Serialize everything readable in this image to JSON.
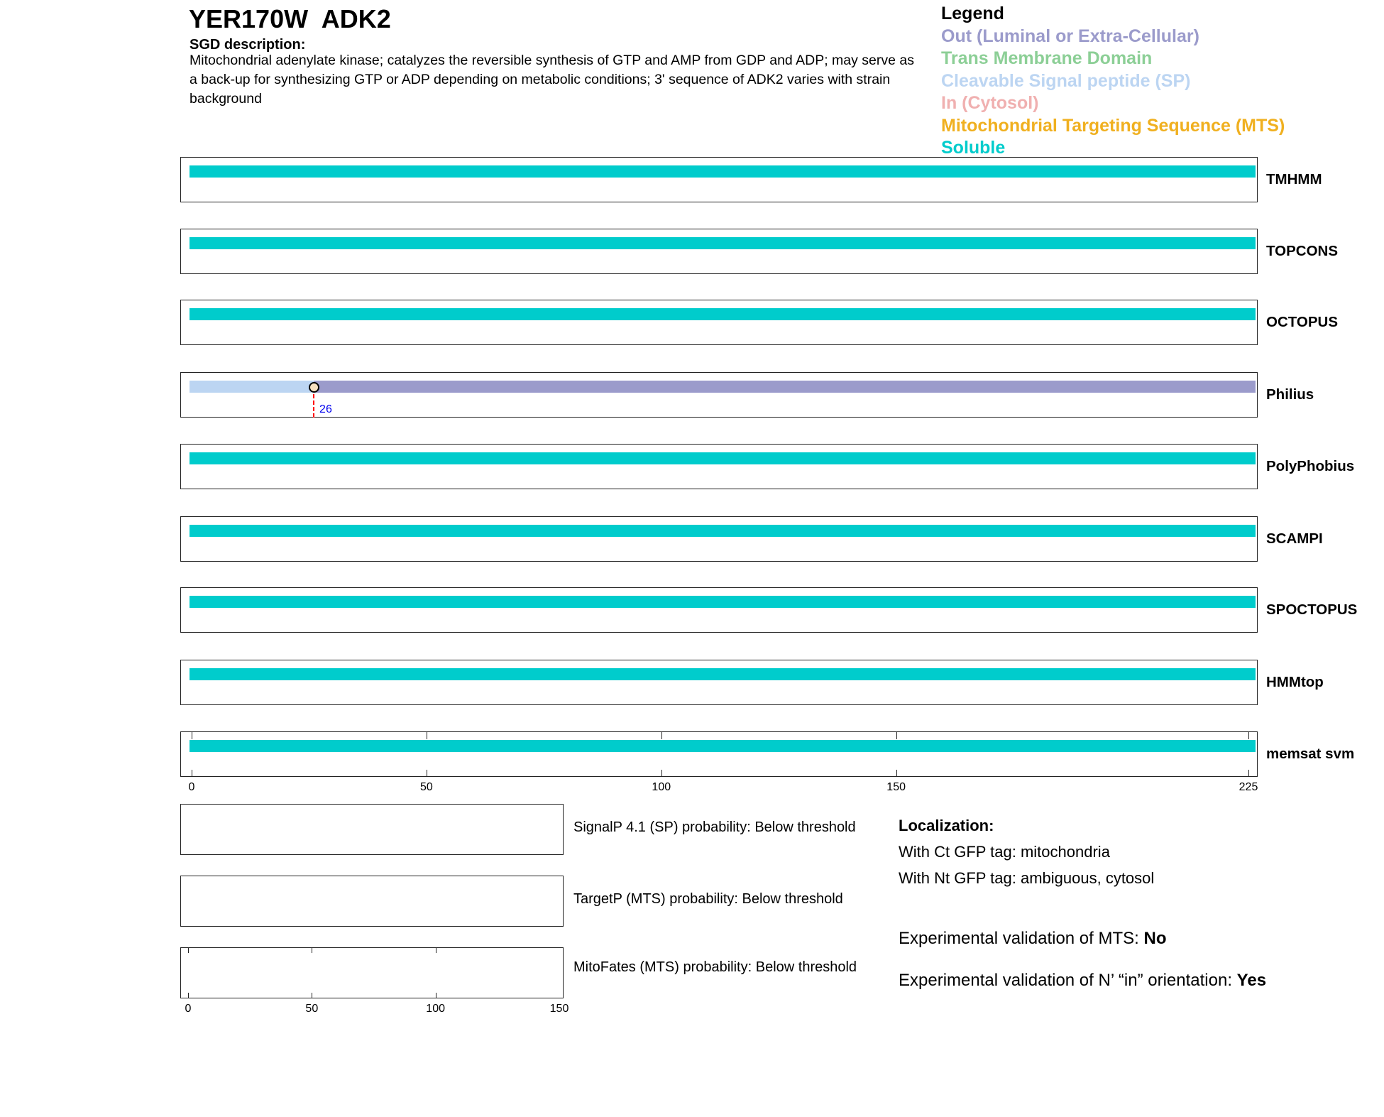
{
  "header": {
    "title": "YER170W  ADK2",
    "description_heading": "SGD description:",
    "description": "Mitochondrial adenylate kinase; catalyzes the reversible synthesis of GTP and AMP from GDP and ADP; may serve as a back-up for synthesizing GTP or ADP depending on metabolic conditions; 3' sequence of ADK2 varies with strain background"
  },
  "legend": {
    "title": "Legend",
    "items": [
      {
        "label": "Out (Luminal or Extra-Cellular)",
        "color": "#9b9bcb"
      },
      {
        "label": "Trans Membrane Domain",
        "color": "#8ccf96"
      },
      {
        "label": "Cleavable Signal peptide (SP)",
        "color": "#bcd5f2"
      },
      {
        "label": "In (Cytosol)",
        "color": "#f0b0b0"
      },
      {
        "label": "Mitochondrial Targeting Sequence (MTS)",
        "color": "#f0b020"
      },
      {
        "label": "Soluble",
        "color": "#00cccc"
      }
    ]
  },
  "chart_data": {
    "type": "bar",
    "sequence_length": 225,
    "xlim": [
      0,
      225
    ],
    "xticks": [
      0,
      50,
      100,
      150,
      225
    ],
    "predictors": [
      {
        "name": "TMHMM",
        "segments": [
          {
            "start": 0,
            "end": 225,
            "type": "Soluble"
          }
        ]
      },
      {
        "name": "TOPCONS",
        "segments": [
          {
            "start": 0,
            "end": 225,
            "type": "Soluble"
          }
        ]
      },
      {
        "name": "OCTOPUS",
        "segments": [
          {
            "start": 0,
            "end": 225,
            "type": "Soluble"
          }
        ]
      },
      {
        "name": "Philius",
        "segments": [
          {
            "start": 0,
            "end": 26,
            "type": "Cleavable Signal peptide (SP)"
          },
          {
            "start": 26,
            "end": 225,
            "type": "Out (Luminal or Extra-Cellular)"
          }
        ],
        "cleavage_site": 26
      },
      {
        "name": "PolyPhobius",
        "segments": [
          {
            "start": 0,
            "end": 225,
            "type": "Soluble"
          }
        ]
      },
      {
        "name": "SCAMPI",
        "segments": [
          {
            "start": 0,
            "end": 225,
            "type": "Soluble"
          }
        ]
      },
      {
        "name": "SPOCTOPUS",
        "segments": [
          {
            "start": 0,
            "end": 225,
            "type": "Soluble"
          }
        ]
      },
      {
        "name": "HMMtop",
        "segments": [
          {
            "start": 0,
            "end": 225,
            "type": "Soluble"
          }
        ]
      },
      {
        "name": "memsat svm",
        "segments": [
          {
            "start": 0,
            "end": 225,
            "type": "Soluble"
          }
        ]
      }
    ],
    "probability_plots": {
      "xlim": [
        0,
        150
      ],
      "xticks": [
        0,
        50,
        100,
        150
      ],
      "items": [
        {
          "label": "SignalP 4.1 (SP) probability: Below threshold"
        },
        {
          "label": "TargetP (MTS) probability: Below threshold"
        },
        {
          "label": "MitoFates (MTS) probability: Below threshold"
        }
      ]
    }
  },
  "localization": {
    "heading": "Localization:",
    "ct": "With Ct GFP tag: mitochondria",
    "nt": "With Nt GFP tag: ambiguous, cytosol",
    "mts_label": "Experimental validation of MTS: ",
    "mts_value": "No",
    "nin_label": "Experimental validation of N’ “in” orientation: ",
    "nin_value": "Yes"
  }
}
